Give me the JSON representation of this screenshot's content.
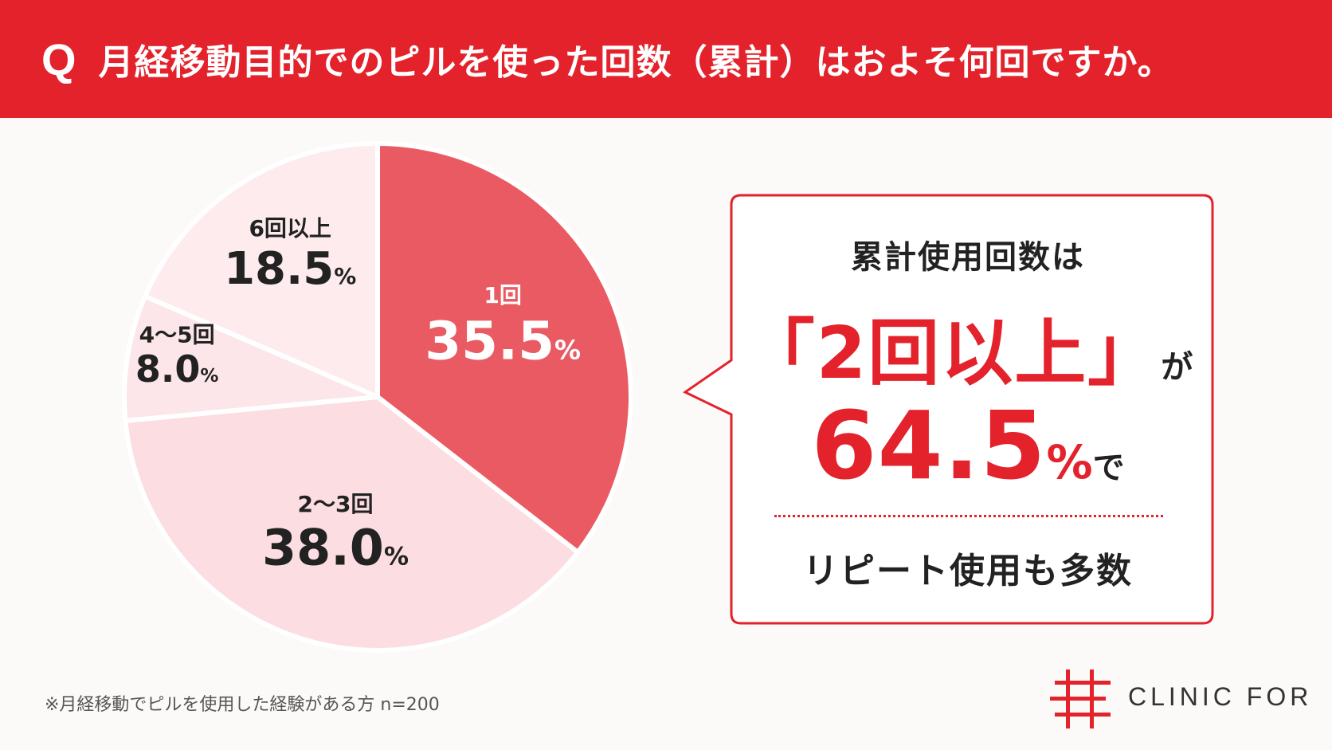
{
  "header": {
    "q_mark": "Q",
    "question": "月経移動目的でのピルを使った回数（累計）はおよそ何回ですか。"
  },
  "chart_data": {
    "type": "pie",
    "unit": "%",
    "slices": [
      {
        "label": "1回",
        "value": 35.5,
        "color": "#ea5a62",
        "text_color": "#ffffff"
      },
      {
        "label": "2〜3回",
        "value": 38.0,
        "color": "#fbdde2",
        "text_color": "#222222"
      },
      {
        "label": "4〜5回",
        "value": 8.0,
        "color": "#fce6ea",
        "text_color": "#222222"
      },
      {
        "label": "6回以上",
        "value": 18.5,
        "color": "#fdebee",
        "text_color": "#222222"
      }
    ]
  },
  "callout": {
    "lead": "累計使用回数は",
    "emphasis": "「2回以上」",
    "emphasis_suffix": "が",
    "percent_value": "64.5",
    "percent_unit": "%",
    "percent_suffix": "で",
    "bottom_text": "リピート使用も多数"
  },
  "footnote": "※月経移動でピルを使用した経験がある方 n=200",
  "brand": {
    "name": "CLINIC FOR",
    "accent": "#e3222b"
  }
}
